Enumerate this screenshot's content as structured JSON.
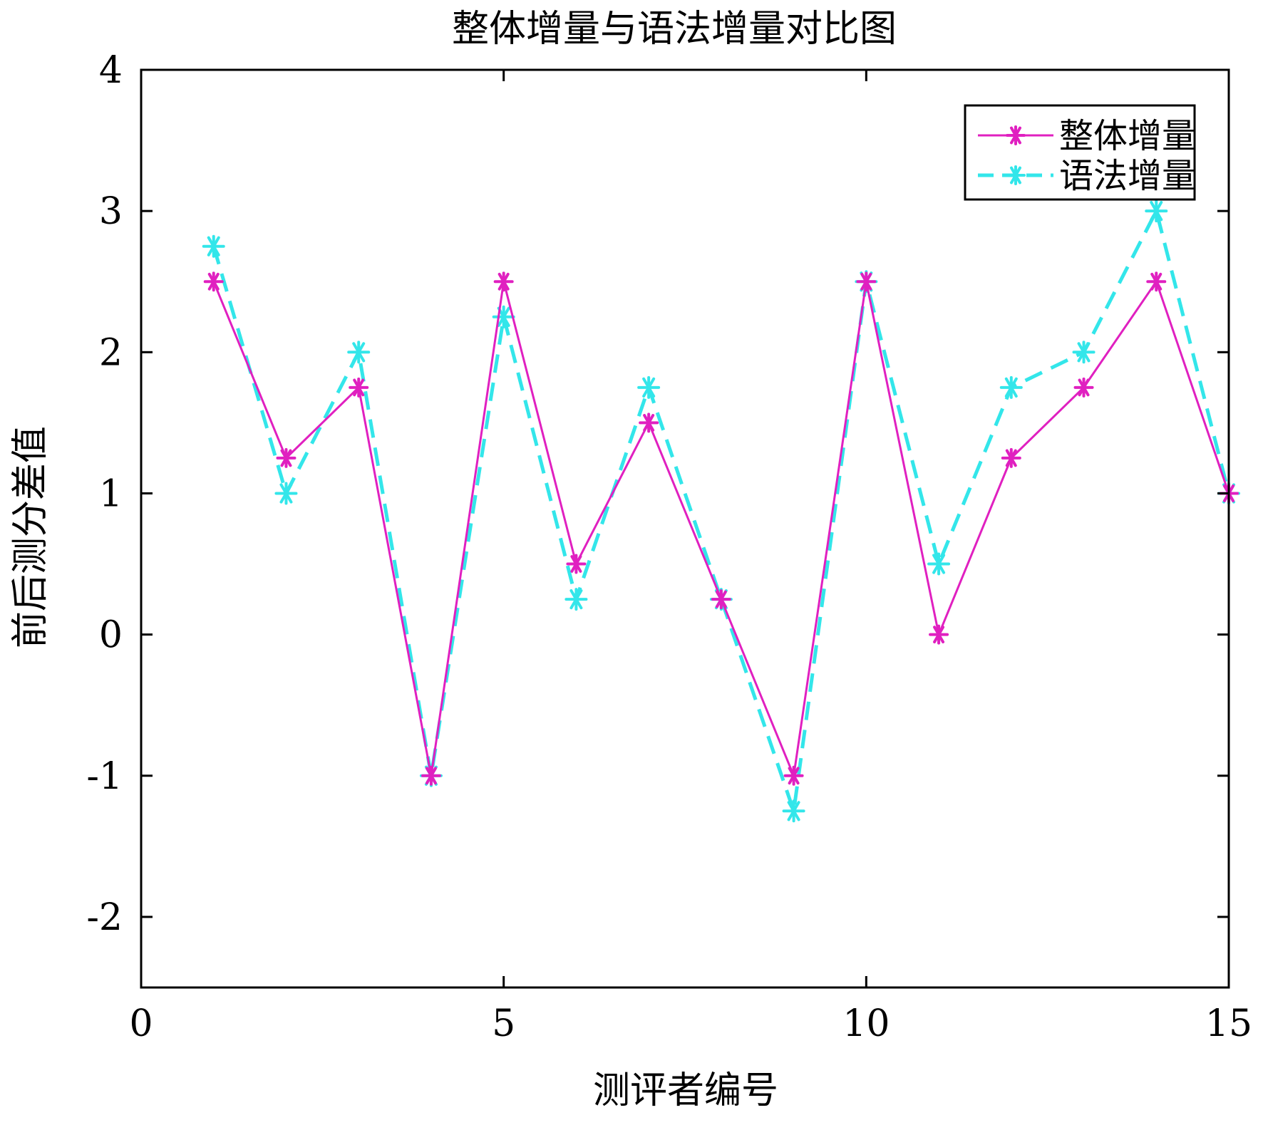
{
  "chart_data": {
    "type": "line",
    "title": "整体增量与语法增量对比图",
    "xlabel": "测评者编号",
    "ylabel": "前后测分差值",
    "xlim": [
      0,
      15
    ],
    "ylim": [
      -2.5,
      4
    ],
    "xticks": [
      0,
      5,
      10,
      15
    ],
    "yticks": [
      -2,
      -1,
      0,
      1,
      2,
      3,
      4
    ],
    "x": [
      1,
      2,
      3,
      4,
      5,
      6,
      7,
      8,
      9,
      10,
      11,
      12,
      13,
      14,
      15
    ],
    "series": [
      {
        "name": "整体增量",
        "values": [
          2.5,
          1.25,
          1.75,
          -1,
          2.5,
          0.5,
          1.5,
          0.25,
          -1,
          2.5,
          0,
          1.25,
          1.75,
          2.5,
          1
        ],
        "color": "#e020c0",
        "line_style": "solid",
        "marker": "asterisk"
      },
      {
        "name": "语法增量",
        "values": [
          2.75,
          1,
          2,
          -1,
          2.25,
          0.25,
          1.75,
          0.25,
          -1.25,
          2.5,
          0.5,
          1.75,
          2,
          3,
          1
        ],
        "color": "#33e6ea",
        "line_style": "dashed",
        "marker": "asterisk"
      }
    ],
    "legend_position": "top-right",
    "grid": false,
    "box": true
  }
}
